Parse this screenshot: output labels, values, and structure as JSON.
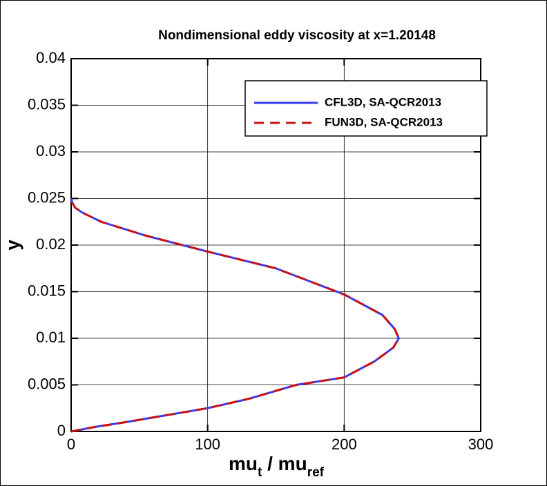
{
  "chart_data": {
    "type": "line",
    "title": "Nondimensional eddy viscosity at x=1.20148",
    "xlabel": [
      "mu",
      "t",
      " / mu",
      "ref"
    ],
    "ylabel": "y",
    "y": [
      0,
      0.0005,
      0.001,
      0.0015,
      0.0025,
      0.0035,
      0.005,
      0.0058,
      0.0075,
      0.009,
      0.01,
      0.011,
      0.0125,
      0.0147,
      0.0175,
      0.0193,
      0.021,
      0.0225,
      0.0235,
      0.024,
      0.0245,
      0.025
    ],
    "series": [
      {
        "name": "CFL3D, SA-QCR2013",
        "color": "#3a3af0",
        "dash": false,
        "values": [
          0,
          18,
          40,
          60,
          100,
          130,
          165,
          200,
          222,
          236,
          240,
          237,
          228,
          200,
          150,
          100,
          55,
          22,
          8,
          3,
          1,
          0
        ]
      },
      {
        "name": "FUN3D, SA-QCR2013",
        "color": "#cc1111",
        "dash": true,
        "values": [
          0,
          18,
          40,
          60,
          100,
          130,
          165,
          200,
          222,
          236,
          240,
          237,
          228,
          200,
          150,
          100,
          55,
          22,
          8,
          3,
          1,
          0
        ]
      }
    ],
    "xlim": [
      0,
      300
    ],
    "xticks": [
      0,
      100,
      200,
      300
    ],
    "ylim": [
      0,
      0.04
    ],
    "yticks": [
      0,
      0.005,
      0.01,
      0.015,
      0.02,
      0.025,
      0.03,
      0.035,
      0.04
    ],
    "grid": true,
    "legend": "upper right"
  }
}
